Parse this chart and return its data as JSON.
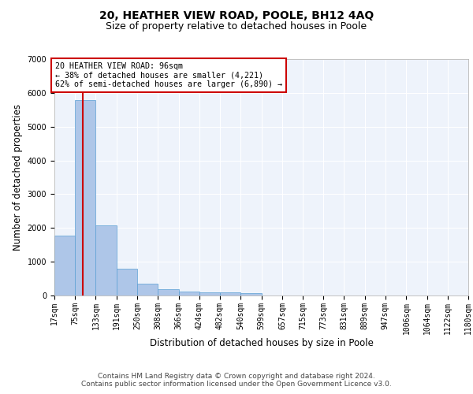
{
  "title1": "20, HEATHER VIEW ROAD, POOLE, BH12 4AQ",
  "title2": "Size of property relative to detached houses in Poole",
  "xlabel": "Distribution of detached houses by size in Poole",
  "ylabel": "Number of detached properties",
  "bin_edges": [
    17,
    75,
    133,
    191,
    250,
    308,
    366,
    424,
    482,
    540,
    599,
    657,
    715,
    773,
    831,
    889,
    947,
    1006,
    1064,
    1122,
    1180
  ],
  "bar_heights": [
    1780,
    5780,
    2080,
    800,
    340,
    195,
    120,
    100,
    95,
    75,
    0,
    0,
    0,
    0,
    0,
    0,
    0,
    0,
    0,
    0
  ],
  "bar_color": "#aec6e8",
  "bar_edgecolor": "#5a9fd4",
  "property_size": 96,
  "red_line_color": "#cc0000",
  "annotation_line1": "20 HEATHER VIEW ROAD: 96sqm",
  "annotation_line2": "← 38% of detached houses are smaller (4,221)",
  "annotation_line3": "62% of semi-detached houses are larger (6,890) →",
  "annotation_box_edgecolor": "#cc0000",
  "ylim": [
    0,
    7000
  ],
  "yticks": [
    0,
    1000,
    2000,
    3000,
    4000,
    5000,
    6000,
    7000
  ],
  "footnote1": "Contains HM Land Registry data © Crown copyright and database right 2024.",
  "footnote2": "Contains public sector information licensed under the Open Government Licence v3.0.",
  "bg_color": "#eef3fb",
  "grid_color": "#ffffff",
  "title1_fontsize": 10,
  "title2_fontsize": 9,
  "tick_label_fontsize": 7,
  "axis_label_fontsize": 8.5,
  "footnote_fontsize": 6.5
}
